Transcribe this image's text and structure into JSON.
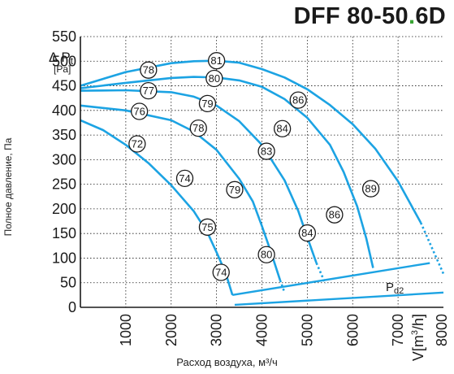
{
  "title": {
    "model": "DFF 80-50",
    "dot": ".",
    "suffix": "6D"
  },
  "ylabel": "Полное давление, Па",
  "xlabel": "Расход воздуха, м³/ч",
  "colors": {
    "curve": "#1ca3e3",
    "axis": "#1a1a1a",
    "grid": "#1a1a1a",
    "accent": "#3aa535"
  },
  "chart_data": {
    "type": "line",
    "title": "DFF 80-50.6D",
    "xlim": [
      0,
      8000
    ],
    "ylim": [
      0,
      550
    ],
    "grid": true,
    "x_ticks": [
      "1000",
      "2000",
      "3000",
      "4000",
      "5000",
      "6000",
      "7000",
      "8000"
    ],
    "y_ticks": [
      "0",
      "50",
      "100",
      "150",
      "200",
      "250",
      "300",
      "350",
      "400",
      "450",
      "500",
      "550"
    ],
    "y_unit_label": {
      "delta": "Δ",
      "p": "P",
      "sub": "t",
      "unit": "[Pa]"
    },
    "x_unit_label": {
      "v": "V",
      "unit_a": "[m",
      "sup": "3",
      "unit_b": "/h]"
    },
    "pd_label": {
      "p": "P",
      "sub": "d2"
    },
    "series": [
      {
        "points": [
          [
            0,
            450
          ],
          [
            1000,
            478
          ],
          [
            2000,
            496
          ],
          [
            2500,
            500
          ],
          [
            3000,
            501
          ],
          [
            3500,
            497
          ],
          [
            4000,
            484
          ],
          [
            4500,
            467
          ],
          [
            5000,
            443
          ],
          [
            5500,
            411
          ],
          [
            6000,
            372
          ],
          [
            6500,
            322
          ],
          [
            7000,
            256
          ],
          [
            7500,
            172
          ],
          [
            8000,
            68
          ]
        ]
      },
      {
        "points": [
          [
            0,
            445
          ],
          [
            1000,
            456
          ],
          [
            2000,
            466
          ],
          [
            2500,
            468
          ],
          [
            3000,
            467
          ],
          [
            3500,
            461
          ],
          [
            4000,
            448
          ],
          [
            4500,
            423
          ],
          [
            5000,
            385
          ],
          [
            5500,
            330
          ],
          [
            5800,
            275
          ],
          [
            6100,
            205
          ],
          [
            6300,
            140
          ],
          [
            6450,
            80
          ]
        ]
      },
      {
        "points": [
          [
            0,
            440
          ],
          [
            1000,
            441
          ],
          [
            2000,
            437
          ],
          [
            2500,
            428
          ],
          [
            3000,
            410
          ],
          [
            3500,
            378
          ],
          [
            4000,
            330
          ],
          [
            4500,
            258
          ],
          [
            4800,
            196
          ],
          [
            5000,
            142
          ],
          [
            5200,
            90
          ],
          [
            5400,
            48
          ]
        ]
      },
      {
        "points": [
          [
            0,
            410
          ],
          [
            1000,
            400
          ],
          [
            2000,
            380
          ],
          [
            2500,
            357
          ],
          [
            3000,
            320
          ],
          [
            3500,
            261
          ],
          [
            3800,
            215
          ],
          [
            4000,
            165
          ],
          [
            4200,
            112
          ],
          [
            4400,
            55
          ],
          [
            4500,
            30
          ]
        ]
      },
      {
        "points": [
          [
            0,
            380
          ],
          [
            500,
            360
          ],
          [
            1000,
            330
          ],
          [
            1500,
            293
          ],
          [
            2000,
            248
          ],
          [
            2500,
            195
          ],
          [
            2800,
            152
          ],
          [
            3000,
            112
          ],
          [
            3200,
            70
          ],
          [
            3300,
            40
          ],
          [
            3350,
            25
          ]
        ]
      }
    ],
    "envelope": [
      {
        "points": [
          [
            3350,
            25
          ],
          [
            7700,
            90
          ]
        ]
      },
      {
        "points": [
          [
            3400,
            5
          ],
          [
            8000,
            30
          ]
        ]
      }
    ],
    "markers": [
      {
        "label": "81",
        "x": 3000,
        "y": 501
      },
      {
        "label": "78",
        "x": 1500,
        "y": 482
      },
      {
        "label": "80",
        "x": 2950,
        "y": 465
      },
      {
        "label": "77",
        "x": 1500,
        "y": 440
      },
      {
        "label": "79",
        "x": 2800,
        "y": 414
      },
      {
        "label": "86",
        "x": 4800,
        "y": 421
      },
      {
        "label": "76",
        "x": 1300,
        "y": 398
      },
      {
        "label": "84",
        "x": 4450,
        "y": 363
      },
      {
        "label": "78",
        "x": 2600,
        "y": 364
      },
      {
        "label": "83",
        "x": 4100,
        "y": 317
      },
      {
        "label": "72",
        "x": 1250,
        "y": 332
      },
      {
        "label": "74",
        "x": 2300,
        "y": 262
      },
      {
        "label": "79",
        "x": 3400,
        "y": 239
      },
      {
        "label": "89",
        "x": 6400,
        "y": 241
      },
      {
        "label": "75",
        "x": 2800,
        "y": 163
      },
      {
        "label": "86",
        "x": 5600,
        "y": 188
      },
      {
        "label": "84",
        "x": 5000,
        "y": 151
      },
      {
        "label": "80",
        "x": 4100,
        "y": 107
      },
      {
        "label": "74",
        "x": 3100,
        "y": 71
      }
    ]
  }
}
